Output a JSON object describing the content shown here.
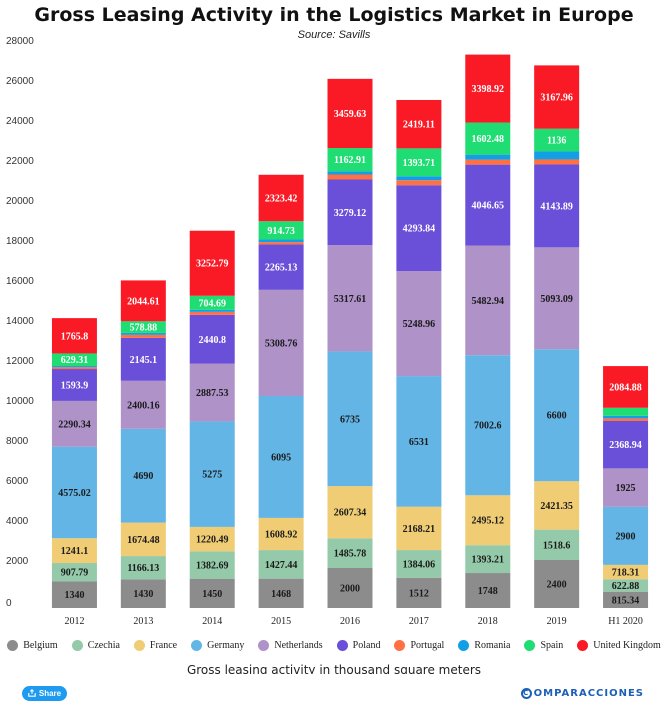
{
  "chart_data": {
    "type": "bar",
    "stacked": true,
    "title": "Gross Leasing Activity in the Logistics Market in Europe",
    "subtitle": "Source: Savills",
    "caption": "Gross leasing activity in thousand square meters",
    "categories": [
      "2012",
      "2013",
      "2014",
      "2015",
      "2016",
      "2017",
      "2018",
      "2019",
      "H1 2020"
    ],
    "ylim": [
      0,
      28000
    ],
    "yticks": [
      0,
      2000,
      4000,
      6000,
      8000,
      10000,
      12000,
      14000,
      16000,
      18000,
      20000,
      22000,
      24000,
      26000,
      28000
    ],
    "grid": false,
    "legend_position": "bottom",
    "series": [
      {
        "name": "Belgium",
        "color": "#8c8c8c",
        "values": [
          1340,
          1430,
          1450,
          1468,
          2000,
          1512,
          1748,
          2400,
          815.34
        ],
        "labels": [
          "1340",
          "1430",
          "1450",
          "1468",
          "2000",
          "1512",
          "1748",
          "2400",
          "815.34"
        ]
      },
      {
        "name": "Czechia",
        "color": "#94c9a9",
        "values": [
          907.79,
          1166.13,
          1382.69,
          1427.44,
          1485.78,
          1384.06,
          1393.21,
          1518.6,
          622.88
        ],
        "labels": [
          "907.79",
          "1166.13",
          "1382.69",
          "1427.44",
          "1485.78",
          "1384.06",
          "1393.21",
          "1518.6",
          "622.88"
        ]
      },
      {
        "name": "France",
        "color": "#f0cd74",
        "values": [
          1241.1,
          1674.48,
          1220.49,
          1608.92,
          2607.34,
          2168.21,
          2495.12,
          2421.35,
          718.31
        ],
        "labels": [
          "1241.1",
          "1674.48",
          "1220.49",
          "1608.92",
          "2607.34",
          "2168.21",
          "2495.12",
          "2421.35",
          "718.31"
        ]
      },
      {
        "name": "Germany",
        "color": "#62b5e5",
        "values": [
          4575.02,
          4690,
          5275,
          6095,
          6735,
          6531,
          7002.6,
          6600,
          2900
        ],
        "labels": [
          "4575.02",
          "4690",
          "5275",
          "6095",
          "6735",
          "6531",
          "7002.6",
          "6600",
          "2900"
        ]
      },
      {
        "name": "Netherlands",
        "color": "#ae92c8",
        "values": [
          2290.34,
          2400.16,
          2887.53,
          5308.76,
          5317.61,
          5248.96,
          5482.94,
          5093.09,
          1925
        ],
        "labels": [
          "2290.34",
          "2400.16",
          "2887.53",
          "5308.76",
          "5317.61",
          "5248.96",
          "5482.94",
          "5093.09",
          "1925"
        ]
      },
      {
        "name": "Poland",
        "color": "#6a4fd8",
        "values": [
          1593.9,
          2145.1,
          2440.8,
          2265.13,
          3279.12,
          4293.84,
          4046.65,
          4143.89,
          2368.94
        ],
        "labels": [
          "1593.9",
          "2145.1",
          "2440.8",
          "2265.13",
          "3279.12",
          "4293.84",
          "4046.65",
          "4143.89",
          "2368.94"
        ]
      },
      {
        "name": "Portugal",
        "color": "#ff7043",
        "values": [
          90,
          150,
          150,
          120,
          250,
          250,
          250,
          250,
          130
        ],
        "labels": [
          "",
          "",
          "",
          "",
          "",
          "",
          "",
          "",
          ""
        ]
      },
      {
        "name": "Romania",
        "color": "#139fe6",
        "values": [
          60,
          100,
          100,
          130,
          160,
          200,
          250,
          400,
          130
        ],
        "labels": [
          "",
          "",
          "",
          "",
          "",
          "",
          "",
          "",
          ""
        ]
      },
      {
        "name": "Spain",
        "color": "#1fdd73",
        "values": [
          629.31,
          578.88,
          704.69,
          914.73,
          1162.91,
          1393.71,
          1602.48,
          1136,
          400
        ],
        "labels": [
          "629.31",
          "578.88",
          "704.69",
          "914.73",
          "1162.91",
          "1393.71",
          "1602.48",
          "1136",
          ""
        ]
      },
      {
        "name": "United Kingdom",
        "color": "#fa1a26",
        "values": [
          1765.8,
          2044.61,
          3252.79,
          2323.42,
          3459.63,
          2419.11,
          3398.92,
          3167.96,
          2084.88
        ],
        "labels": [
          "1765.8",
          "2044.61",
          "3252.79",
          "2323.42",
          "3459.63",
          "2419.11",
          "3398.92",
          "3167.96",
          "2084.88"
        ]
      }
    ]
  },
  "footer": {
    "share_label": "Share",
    "brand_name": "OMPARACCIONES",
    "brand_mark": "C"
  },
  "icons": {
    "share": "share-icon"
  }
}
